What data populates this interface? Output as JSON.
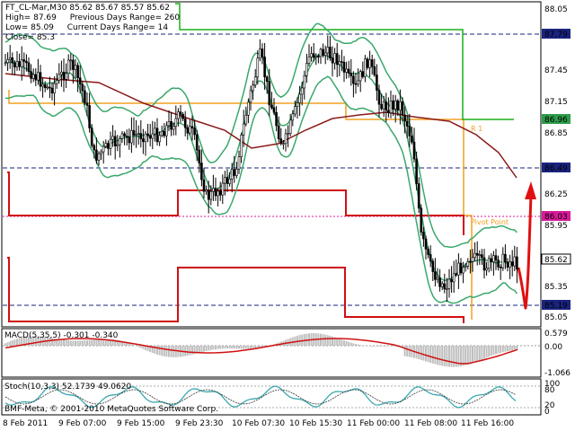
{
  "header": {
    "line1_symbol": "FT_CL-Mar,M30",
    "line1_ohlc": "85.62 85.67 85.57 85.62",
    "high": "High= 87.69",
    "prev_range": "Previous Days Range= 260",
    "low": "Low= 85.09",
    "curr_range": "Current Days Range= 14",
    "close": "Close= 85.3"
  },
  "price_scale": {
    "ticks": [
      "88.05",
      "87.45",
      "87.15",
      "86.85",
      "86.25",
      "85.95",
      "85.35",
      "85.05"
    ],
    "highlighted": [
      {
        "value": "87.79",
        "color": "#1a237e"
      },
      {
        "value": "86.96",
        "color": "#2e9c4a"
      },
      {
        "value": "86.49",
        "color": "#1a237e"
      },
      {
        "value": "86.03",
        "color": "#d81b9a"
      },
      {
        "value": "85.62",
        "color": "#000000"
      },
      {
        "value": "85.19",
        "color": "#1a237e"
      }
    ]
  },
  "annotations": {
    "r1": "R 1",
    "pivot": "Pivot Point"
  },
  "macd": {
    "label": "MACD(5,35,5) -0.301 -0.340",
    "scale": [
      "0.579",
      "0.00",
      "-1.066"
    ]
  },
  "stoch": {
    "label": "Stoch(10,3,3) 52.1739 49.0620",
    "scale": [
      "100",
      "80",
      "20",
      "0"
    ]
  },
  "copyright": "BMF-Meta, © 2001-2010 MetaQuotes Software Corp.",
  "time_axis": [
    "8 Feb 2011",
    "9 Feb 07:00",
    "9 Feb 15:00",
    "9 Feb 23:30",
    "10 Feb 07:30",
    "10 Feb 15:30",
    "11 Feb 00:00",
    "11 Feb 08:00",
    "11 Feb 16:00"
  ],
  "colors": {
    "band": "#3aa86b",
    "ma": "#8b1a1a",
    "pivot_line": "#f0a020",
    "level": "#d01010",
    "r1_line": "#18b018"
  }
}
